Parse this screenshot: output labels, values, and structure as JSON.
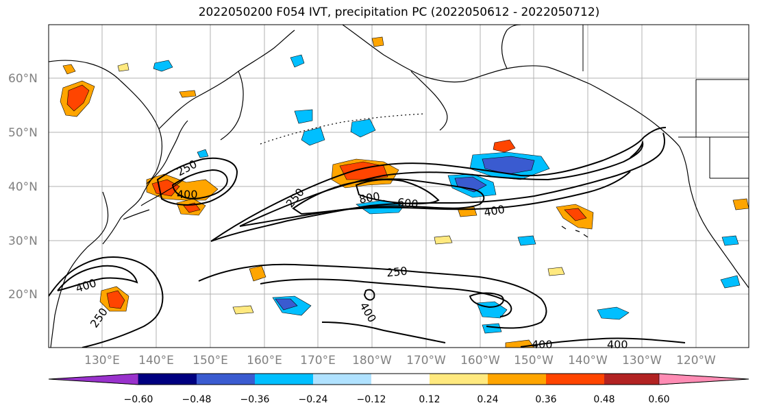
{
  "title": "2022050200 F054 IVT, precipitation PC (2022050612 - 2022050712)",
  "lat_labels": [
    "60°N",
    "50°N",
    "40°N",
    "30°N",
    "20°N"
  ],
  "lon_labels": [
    "130°E",
    "140°E",
    "150°E",
    "160°E",
    "170°E",
    "180°W",
    "170°W",
    "160°W",
    "150°W",
    "140°W",
    "130°W",
    "120°W"
  ],
  "ivt_contour_labels": [
    "250",
    "400",
    "250",
    "800",
    "600",
    "400",
    "400",
    "250",
    "250",
    "400",
    "400",
    "400"
  ],
  "colorbar": {
    "ticks": [
      "−0.60",
      "−0.48",
      "−0.36",
      "−0.24",
      "−0.12",
      "0.12",
      "0.24",
      "0.36",
      "0.48",
      "0.60"
    ],
    "colors": [
      "#9932cc",
      "#000080",
      "#3a5bd0",
      "#00bfff",
      "#b0e2ff",
      "#ffffff",
      "#ffe97f",
      "#ffa500",
      "#ff4500",
      "#b22222",
      "#ff8cb4"
    ]
  },
  "precip_colors": {
    "neg_light": "#b0e2ff",
    "neg_mid": "#00bfff",
    "neg_strong": "#3a5bd0",
    "pos_light": "#ffe97f",
    "pos_mid": "#ffa500",
    "pos_strong": "#ff4500"
  }
}
